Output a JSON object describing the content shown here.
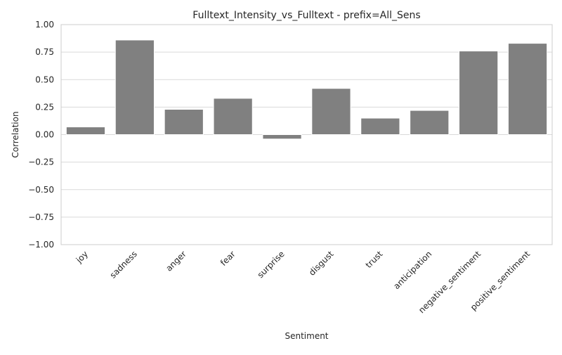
{
  "chart_data": {
    "type": "bar",
    "title": "Fulltext_Intensity_vs_Fulltext - prefix=All_Sens",
    "xlabel": "Sentiment",
    "ylabel": "Correlation",
    "ylim": [
      -1.0,
      1.0
    ],
    "yticks": [
      "1.00",
      "0.75",
      "0.50",
      "0.25",
      "0.00",
      "−0.25",
      "−0.50",
      "−0.75",
      "−1.00"
    ],
    "ytick_values": [
      1.0,
      0.75,
      0.5,
      0.25,
      0.0,
      -0.25,
      -0.5,
      -0.75,
      -1.0
    ],
    "categories": [
      "joy",
      "sadness",
      "anger",
      "fear",
      "surprise",
      "disgust",
      "trust",
      "anticipation",
      "negative_sentiment",
      "positive_sentiment"
    ],
    "values": [
      0.07,
      0.86,
      0.23,
      0.33,
      -0.04,
      0.42,
      0.15,
      0.22,
      0.76,
      0.83
    ],
    "bar_color": "#808080",
    "grid": "horizontal",
    "grid_color": "#d9d9d9",
    "frame_color": "#cccccc"
  }
}
